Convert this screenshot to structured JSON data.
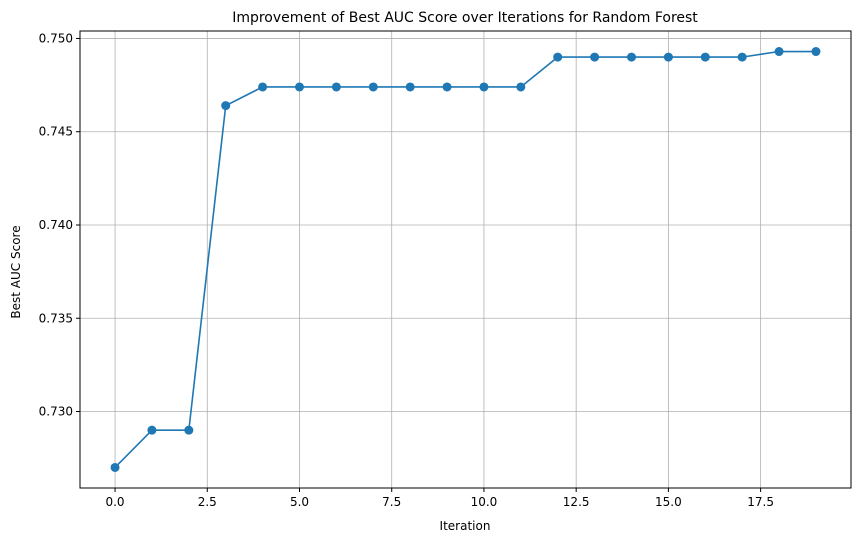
{
  "chart_data": {
    "type": "line",
    "title": "Improvement of Best AUC Score over Iterations for Random Forest",
    "xlabel": "Iteration",
    "ylabel": "Best AUC Score",
    "xlim": [
      -0.95,
      19.95
    ],
    "ylim": [
      0.7259,
      0.7504
    ],
    "grid": true,
    "line_color": "#1f77b4",
    "x_ticks": [
      0.0,
      2.5,
      5.0,
      7.5,
      10.0,
      12.5,
      15.0,
      17.5
    ],
    "x_tick_labels": [
      "0.0",
      "2.5",
      "5.0",
      "7.5",
      "10.0",
      "12.5",
      "15.0",
      "17.5"
    ],
    "y_ticks": [
      0.73,
      0.735,
      0.74,
      0.745,
      0.75
    ],
    "y_tick_labels": [
      "0.730",
      "0.735",
      "0.740",
      "0.745",
      "0.750"
    ],
    "x": [
      0,
      1,
      2,
      3,
      4,
      5,
      6,
      7,
      8,
      9,
      10,
      11,
      12,
      13,
      14,
      15,
      16,
      17,
      18,
      19
    ],
    "y": [
      0.727,
      0.729,
      0.729,
      0.7464,
      0.7474,
      0.7474,
      0.7474,
      0.7474,
      0.7474,
      0.7474,
      0.7474,
      0.7474,
      0.749,
      0.749,
      0.749,
      0.749,
      0.749,
      0.749,
      0.7493,
      0.7493
    ]
  }
}
